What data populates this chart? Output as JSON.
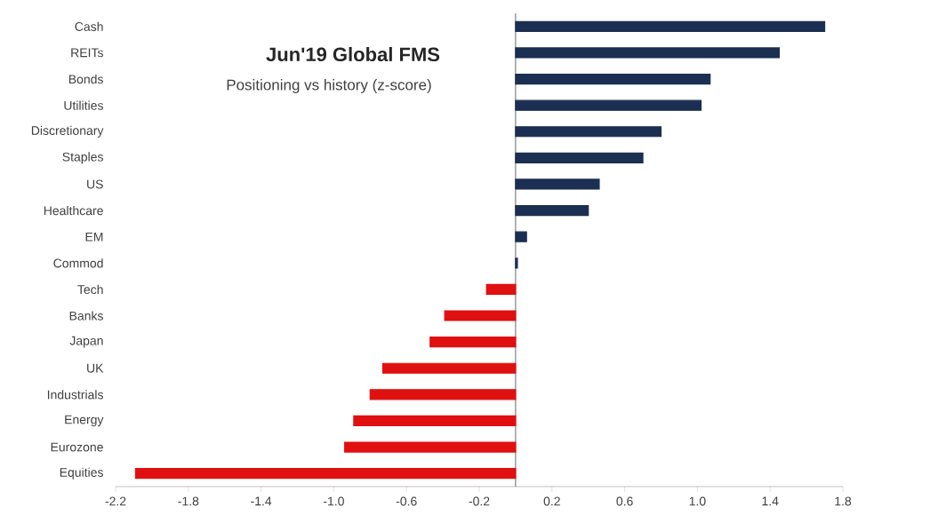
{
  "chart_data": {
    "type": "bar",
    "orientation": "horizontal",
    "title": "Jun'19 Global FMS",
    "subtitle": "Positioning vs history (z-score)",
    "categories": [
      "Cash",
      "REITs",
      "Bonds",
      "Utilities",
      "Discretionary",
      "Staples",
      "US",
      "Healthcare",
      "EM",
      "Commod",
      "Tech",
      "Banks",
      "Japan",
      "UK",
      "Industrials",
      "Energy",
      "Eurozone",
      "Equities"
    ],
    "values": [
      1.7,
      1.45,
      1.07,
      1.02,
      0.8,
      0.7,
      0.46,
      0.4,
      0.06,
      0.01,
      -0.16,
      -0.39,
      -0.47,
      -0.73,
      -0.8,
      -0.89,
      -0.94,
      -2.09
    ],
    "colors": [
      "#1b2f52",
      "#1b2f52",
      "#1b2f52",
      "#1b2f52",
      "#1b2f52",
      "#1b2f52",
      "#1b2f52",
      "#1b2f52",
      "#1b2f52",
      "#1b2f52",
      "#e01010",
      "#e01010",
      "#e01010",
      "#e01010",
      "#e01010",
      "#e01010",
      "#e01010",
      "#e01010"
    ],
    "xlim": [
      -2.2,
      1.8
    ],
    "xticks": [
      -2.2,
      -1.8,
      -1.4,
      {
        "value": -1,
        "label": "-1.0"
      },
      -0.6,
      -0.2,
      0.2,
      0.6,
      {
        "value": 1,
        "label": "1.0"
      },
      1.4,
      1.8
    ]
  }
}
